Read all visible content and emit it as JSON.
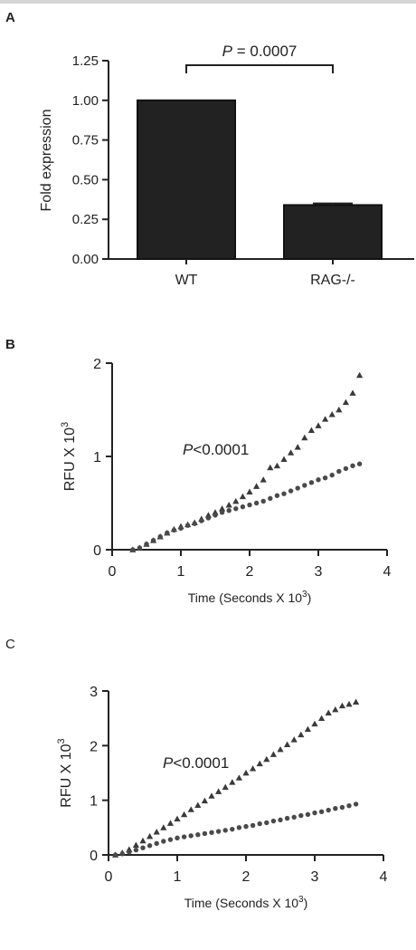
{
  "chart_data": [
    {
      "panel": "A",
      "type": "bar",
      "categories": [
        "WT",
        "RAG-/-"
      ],
      "values": [
        1.0,
        0.34
      ],
      "errors": [
        0.0,
        0.01
      ],
      "ylabel": "Fold expression",
      "ylim": [
        0,
        1.25
      ],
      "yticks": [
        "0.00",
        "0.25",
        "0.50",
        "0.75",
        "1.00",
        "1.25"
      ],
      "annotation": {
        "italic": "P",
        "text": " = 0.0007"
      },
      "bar_color": "#222222"
    },
    {
      "panel": "B",
      "type": "scatter",
      "xlabel": "Time (Seconds X 10",
      "xlabel_sup": "3",
      "xlabel_end": ")",
      "ylabel": "RFU X 10",
      "ylabel_sup": "3",
      "xlim": [
        0,
        4
      ],
      "ylim": [
        0,
        2
      ],
      "xticks": [
        "0",
        "1",
        "2",
        "3",
        "4"
      ],
      "yticks": [
        "0",
        "1",
        "2"
      ],
      "annotation": {
        "italic": "P",
        "text": "<0.0001"
      },
      "series": [
        {
          "marker": "triangle",
          "x": [
            0.3,
            0.4,
            0.5,
            0.6,
            0.7,
            0.8,
            0.9,
            1.0,
            1.1,
            1.2,
            1.3,
            1.4,
            1.5,
            1.6,
            1.7,
            1.8,
            1.9,
            2.0,
            2.1,
            2.2,
            2.3,
            2.4,
            2.5,
            2.6,
            2.7,
            2.8,
            2.9,
            3.0,
            3.1,
            3.2,
            3.3,
            3.4,
            3.5,
            3.6
          ],
          "y": [
            0.0,
            0.02,
            0.06,
            0.1,
            0.14,
            0.18,
            0.22,
            0.25,
            0.27,
            0.29,
            0.33,
            0.37,
            0.4,
            0.44,
            0.48,
            0.52,
            0.57,
            0.62,
            0.68,
            0.75,
            0.88,
            0.9,
            0.97,
            1.04,
            1.1,
            1.2,
            1.28,
            1.33,
            1.4,
            1.45,
            1.5,
            1.58,
            1.68,
            1.87
          ]
        },
        {
          "marker": "circle",
          "x": [
            0.3,
            0.4,
            0.5,
            0.6,
            0.7,
            0.8,
            0.9,
            1.0,
            1.1,
            1.2,
            1.3,
            1.4,
            1.5,
            1.6,
            1.7,
            1.8,
            1.9,
            2.0,
            2.1,
            2.2,
            2.3,
            2.4,
            2.5,
            2.6,
            2.7,
            2.8,
            2.9,
            3.0,
            3.1,
            3.2,
            3.3,
            3.4,
            3.5,
            3.6
          ],
          "y": [
            0.0,
            0.02,
            0.06,
            0.1,
            0.14,
            0.18,
            0.21,
            0.23,
            0.26,
            0.28,
            0.31,
            0.34,
            0.37,
            0.4,
            0.42,
            0.44,
            0.46,
            0.48,
            0.5,
            0.52,
            0.55,
            0.58,
            0.6,
            0.63,
            0.66,
            0.69,
            0.72,
            0.75,
            0.77,
            0.8,
            0.84,
            0.87,
            0.9,
            0.92
          ]
        }
      ]
    },
    {
      "panel": "C",
      "type": "scatter",
      "xlabel": "Time (Seconds X 10",
      "xlabel_sup": "3",
      "xlabel_end": ")",
      "ylabel": "RFU X 10",
      "ylabel_sup": "3",
      "xlim": [
        0,
        4
      ],
      "ylim": [
        0,
        3
      ],
      "xticks": [
        "0",
        "1",
        "2",
        "3",
        "4"
      ],
      "yticks": [
        "0",
        "1",
        "2",
        "3"
      ],
      "annotation": {
        "italic": "P",
        "text": "<0.0001"
      },
      "series": [
        {
          "marker": "triangle",
          "x": [
            0.1,
            0.2,
            0.3,
            0.4,
            0.5,
            0.6,
            0.7,
            0.8,
            0.9,
            1.0,
            1.1,
            1.2,
            1.3,
            1.4,
            1.5,
            1.6,
            1.7,
            1.8,
            1.9,
            2.0,
            2.1,
            2.2,
            2.3,
            2.4,
            2.5,
            2.6,
            2.7,
            2.8,
            2.9,
            3.0,
            3.1,
            3.2,
            3.3,
            3.4,
            3.5,
            3.6
          ],
          "y": [
            0.0,
            0.04,
            0.1,
            0.18,
            0.26,
            0.34,
            0.42,
            0.5,
            0.58,
            0.66,
            0.74,
            0.83,
            0.91,
            0.99,
            1.08,
            1.16,
            1.24,
            1.33,
            1.41,
            1.5,
            1.58,
            1.67,
            1.75,
            1.84,
            1.93,
            2.02,
            2.11,
            2.2,
            2.3,
            2.4,
            2.5,
            2.6,
            2.66,
            2.73,
            2.76,
            2.8
          ]
        },
        {
          "marker": "circle",
          "x": [
            0.1,
            0.2,
            0.3,
            0.4,
            0.5,
            0.6,
            0.7,
            0.8,
            0.9,
            1.0,
            1.1,
            1.2,
            1.3,
            1.4,
            1.5,
            1.6,
            1.7,
            1.8,
            1.9,
            2.0,
            2.1,
            2.2,
            2.3,
            2.4,
            2.5,
            2.6,
            2.7,
            2.8,
            2.9,
            3.0,
            3.1,
            3.2,
            3.3,
            3.4,
            3.5,
            3.6
          ],
          "y": [
            0.0,
            0.02,
            0.05,
            0.09,
            0.13,
            0.17,
            0.21,
            0.25,
            0.28,
            0.31,
            0.33,
            0.35,
            0.37,
            0.39,
            0.41,
            0.43,
            0.45,
            0.47,
            0.5,
            0.52,
            0.54,
            0.57,
            0.59,
            0.62,
            0.64,
            0.67,
            0.69,
            0.72,
            0.74,
            0.77,
            0.79,
            0.82,
            0.85,
            0.87,
            0.9,
            0.93
          ]
        }
      ]
    }
  ]
}
